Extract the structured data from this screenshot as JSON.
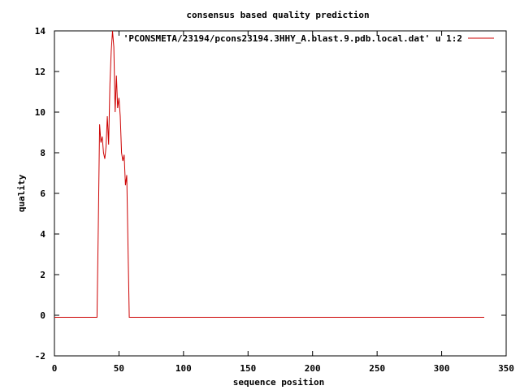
{
  "chart_data": {
    "type": "line",
    "title": "consensus based quality prediction",
    "xlabel": "sequence position",
    "ylabel": "quality",
    "xlim": [
      0,
      350
    ],
    "ylim": [
      -2,
      14
    ],
    "xticks": [
      0,
      50,
      100,
      150,
      200,
      250,
      300,
      350
    ],
    "yticks": [
      -2,
      0,
      2,
      4,
      6,
      8,
      10,
      12,
      14
    ],
    "grid": false,
    "legend_position": "top-right",
    "series": [
      {
        "name": "'PCONSMETA/23194/pcons23194.3HHY_A.blast.9.pdb.local.dat' u 1:2",
        "color": "#cc0000",
        "x": [
          0,
          33,
          34,
          35,
          36,
          37,
          38,
          39,
          40,
          41,
          42,
          43,
          44,
          45,
          46,
          47,
          48,
          49,
          50,
          51,
          52,
          53,
          54,
          55,
          56,
          57,
          58,
          59,
          60,
          333
        ],
        "y": [
          -0.1,
          -0.1,
          4.4,
          9.4,
          8.5,
          8.8,
          8.0,
          7.7,
          8.3,
          9.8,
          8.4,
          11.4,
          13.0,
          14.0,
          13.2,
          10.0,
          11.8,
          10.2,
          10.7,
          9.8,
          8.0,
          7.6,
          7.9,
          6.4,
          6.9,
          3.5,
          -0.1,
          -0.1,
          -0.1,
          -0.1
        ]
      }
    ]
  }
}
